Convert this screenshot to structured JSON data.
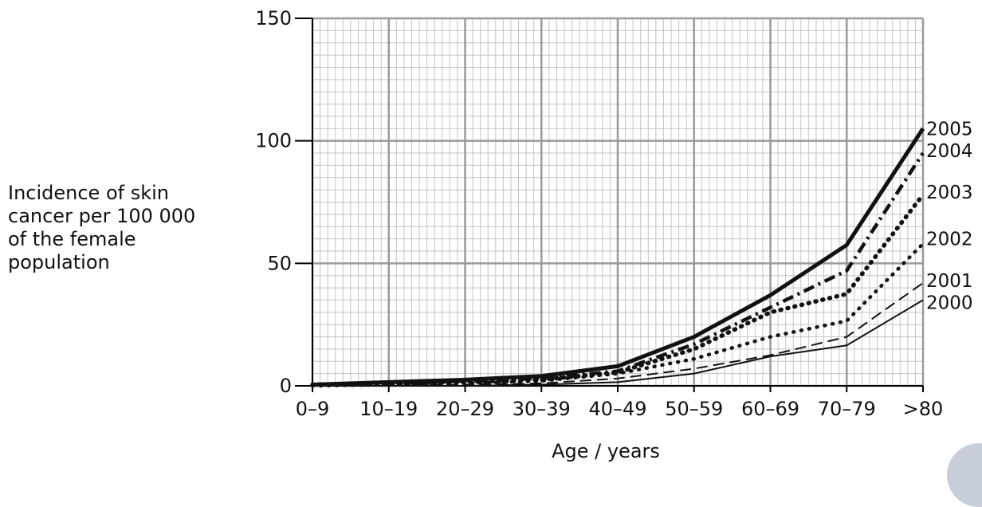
{
  "chart_data": {
    "type": "line",
    "xlabel": "Age / years",
    "ylabel_lines": [
      "Incidence of skin",
      "cancer per 100 000",
      "of the female",
      "population"
    ],
    "categories": [
      "0–9",
      "10–19",
      "20–29",
      "30–39",
      "40–49",
      "50–59",
      "60–69",
      "70–79",
      ">80"
    ],
    "ylim": [
      0,
      150
    ],
    "yticks": [
      0,
      50,
      100,
      150
    ],
    "grid": true,
    "series": [
      {
        "name": "2000",
        "style": "thin-solid",
        "values": [
          0,
          0,
          0,
          0.5,
          1.5,
          5,
          12,
          16.5,
          35
        ]
      },
      {
        "name": "2001",
        "style": "dashed",
        "values": [
          0,
          0,
          0.5,
          1,
          3,
          7,
          12.5,
          20,
          42
        ]
      },
      {
        "name": "2002",
        "style": "dotted",
        "values": [
          0,
          0.5,
          1,
          2,
          5,
          11,
          20,
          26.5,
          58
        ]
      },
      {
        "name": "2003",
        "style": "heavy-dotted",
        "values": [
          0.5,
          1,
          1.5,
          2.5,
          5.5,
          15,
          30,
          37.5,
          78
        ]
      },
      {
        "name": "2004",
        "style": "dash-dot",
        "values": [
          0.5,
          1,
          2,
          3,
          6,
          17,
          32,
          47,
          95
        ]
      },
      {
        "name": "2005",
        "style": "thick-solid",
        "values": [
          0.5,
          1.5,
          2.5,
          4,
          8,
          20,
          37,
          57.5,
          105
        ]
      }
    ],
    "series_label_values": [
      105,
      96,
      79,
      60,
      43,
      34
    ]
  }
}
